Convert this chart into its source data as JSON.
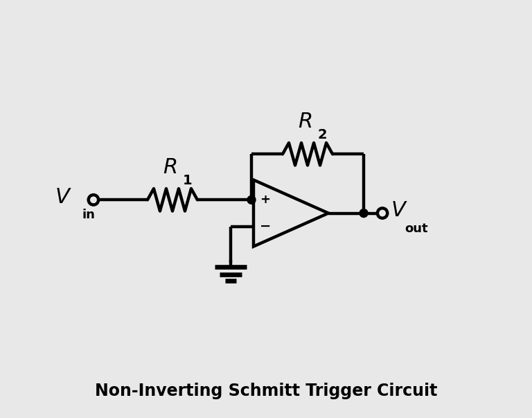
{
  "bg_color": "#e8e8e8",
  "line_color": "black",
  "line_width": 3.2,
  "title": "Non-Inverting Schmitt Trigger Circuit",
  "title_fontsize": 17,
  "title_fontweight": "bold",
  "fig_width": 7.68,
  "fig_height": 6.03,
  "dpi": 100
}
